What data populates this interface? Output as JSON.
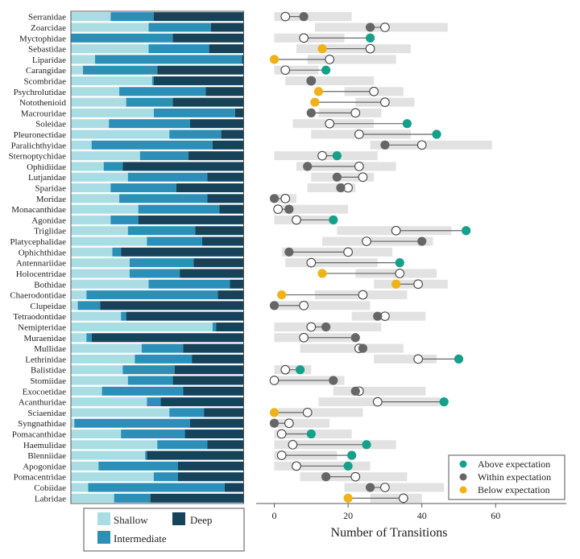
{
  "colors": {
    "shallow": "#aadde3",
    "intermediate": "#2c8fb8",
    "deep": "#16435a",
    "above": "#14a08a",
    "within": "#666666",
    "below": "#efb217",
    "range": "#e2e2e2",
    "connector": "#666666"
  },
  "chart_data": [
    {
      "type": "bar",
      "subtype": "stacked-proportion-horizontal",
      "title": "",
      "categories": [
        "Serranidae",
        "Zoarcidae",
        "Myctophidae",
        "Sebastidae",
        "Liparidae",
        "Carangidae",
        "Scombridae",
        "Psychrolutidae",
        "Notothenioid",
        "Macrouridae",
        "Soleidae",
        "Pleuronectidae",
        "Paralichthyidae",
        "Sternoptychidae",
        "Ophidiidae",
        "Lutjanidae",
        "Sparidae",
        "Moridae",
        "Monacanthidae",
        "Agonidae",
        "Triglidae",
        "Platycephalidae",
        "Ophichthidae",
        "Antennariidae",
        "Holocentridae",
        "Bothidae",
        "Chaerodontidae",
        "Clupeidae",
        "Tetraodontidae",
        "Nemipteridae",
        "Muraenidae",
        "Mullidae",
        "Lethrinidae",
        "Balistidae",
        "Stomiidae",
        "Exocoetidae",
        "Acanthuridae",
        "Sciaenidae",
        "Syngnathidae",
        "Pomacanthidae",
        "Haemulidae",
        "Blenniidae",
        "Apogonidae",
        "Pomacentridae",
        "Cobiidae",
        "Labridae"
      ],
      "series": [
        {
          "name": "Shallow",
          "values": [
            0.23,
            0.45,
            0.0,
            0.45,
            0.14,
            0.07,
            0.47,
            0.28,
            0.32,
            0.48,
            0.22,
            0.57,
            0.12,
            0.4,
            0.19,
            0.33,
            0.23,
            0.28,
            0.39,
            0.23,
            0.33,
            0.44,
            0.24,
            0.34,
            0.34,
            0.45,
            0.09,
            0.04,
            0.29,
            0.82,
            0.09,
            0.41,
            0.37,
            0.3,
            0.33,
            0.18,
            0.44,
            0.57,
            0.02,
            0.29,
            0.5,
            0.43,
            0.16,
            0.48,
            0.1,
            0.25
          ]
        },
        {
          "name": "Intermediate",
          "values": [
            0.25,
            0.36,
            0.59,
            0.35,
            0.85,
            0.43,
            0.01,
            0.5,
            0.27,
            0.47,
            0.47,
            0.3,
            0.7,
            0.28,
            0.11,
            0.46,
            0.38,
            0.51,
            0.47,
            0.16,
            0.39,
            0.32,
            0.05,
            0.37,
            0.29,
            0.47,
            0.76,
            0.13,
            0.03,
            0.02,
            0.03,
            0.24,
            0.33,
            0.3,
            0.26,
            0.47,
            0.08,
            0.2,
            0.67,
            0.37,
            0.29,
            0.01,
            0.46,
            0.14,
            0.79,
            0.21
          ]
        },
        {
          "name": "Deep",
          "values": [
            0.52,
            0.19,
            0.41,
            0.2,
            0.01,
            0.5,
            0.52,
            0.22,
            0.41,
            0.05,
            0.31,
            0.13,
            0.18,
            0.32,
            0.7,
            0.21,
            0.39,
            0.21,
            0.14,
            0.61,
            0.28,
            0.24,
            0.71,
            0.29,
            0.37,
            0.08,
            0.15,
            0.83,
            0.68,
            0.16,
            0.88,
            0.35,
            0.3,
            0.4,
            0.41,
            0.35,
            0.48,
            0.23,
            0.31,
            0.34,
            0.21,
            0.56,
            0.38,
            0.38,
            0.11,
            0.54
          ]
        }
      ],
      "xlim": [
        0,
        1
      ],
      "legend": {
        "entries": [
          "Shallow",
          "Deep",
          "Intermediate"
        ],
        "position": "bottom"
      }
    },
    {
      "type": "scatter",
      "subtype": "dumbbell",
      "title": "",
      "categories": [
        "Serranidae",
        "Zoarcidae",
        "Myctophidae",
        "Sebastidae",
        "Liparidae",
        "Carangidae",
        "Scombridae",
        "Psychrolutidae",
        "Notothenioid",
        "Macrouridae",
        "Soleidae",
        "Pleuronectidae",
        "Paralichthyidae",
        "Sternoptychidae",
        "Ophidiidae",
        "Lutjanidae",
        "Sparidae",
        "Moridae",
        "Monacanthidae",
        "Agonidae",
        "Triglidae",
        "Platycephalidae",
        "Ophichthidae",
        "Antennariidae",
        "Holocentridae",
        "Bothidae",
        "Chaerodontidae",
        "Clupeidae",
        "Tetraodontidae",
        "Nemipteridae",
        "Muraenidae",
        "Mullidae",
        "Lethrinidae",
        "Balistidae",
        "Stomiidae",
        "Exocoetidae",
        "Acanthuridae",
        "Sciaenidae",
        "Syngnathidae",
        "Pomacanthidae",
        "Haemulidae",
        "Blenniidae",
        "Apogonidae",
        "Pomacentridae",
        "Cobiidae",
        "Labridae"
      ],
      "expected": [
        3,
        30,
        8,
        26,
        15,
        3,
        10,
        27,
        30,
        22,
        15,
        23,
        40,
        13,
        23,
        24,
        20,
        3,
        1,
        6,
        33,
        25,
        20,
        10,
        34,
        39,
        24,
        8,
        30,
        10,
        8,
        23,
        39,
        3,
        0,
        23,
        28,
        9,
        4,
        2,
        5,
        2,
        6,
        22,
        30,
        35
      ],
      "observed": [
        8,
        26,
        26,
        13,
        0,
        14,
        10,
        12,
        11,
        10,
        36,
        44,
        30,
        17,
        9,
        17,
        18,
        0,
        4,
        16,
        52,
        40,
        4,
        34,
        13,
        33,
        2,
        0,
        28,
        14,
        22,
        24,
        50,
        7,
        16,
        22,
        46,
        0,
        0,
        10,
        25,
        21,
        20,
        14,
        26,
        20
      ],
      "status": [
        "within",
        "within",
        "above",
        "below",
        "below",
        "above",
        "within",
        "below",
        "below",
        "within",
        "above",
        "above",
        "within",
        "above",
        "within",
        "within",
        "within",
        "within",
        "within",
        "above",
        "above",
        "within",
        "within",
        "above",
        "below",
        "below",
        "below",
        "within",
        "within",
        "within",
        "within",
        "within",
        "above",
        "above",
        "within",
        "within",
        "above",
        "below",
        "within",
        "above",
        "above",
        "above",
        "above",
        "within",
        "within",
        "below"
      ],
      "range_low": [
        0,
        11,
        0,
        6,
        9,
        0,
        3,
        19,
        22,
        12,
        5,
        10,
        26,
        0,
        6,
        10,
        9,
        0,
        0,
        0,
        17,
        13,
        2,
        3,
        22,
        27,
        11,
        0,
        21,
        0,
        0,
        7,
        27,
        0,
        0,
        16,
        12,
        1,
        0,
        0,
        0,
        0,
        0,
        7,
        19,
        26
      ],
      "range_high": [
        21,
        47,
        19,
        37,
        33,
        12,
        27,
        35,
        38,
        29,
        27,
        37,
        59,
        28,
        33,
        27,
        22,
        6,
        20,
        17,
        48,
        43,
        32,
        28,
        44,
        47,
        36,
        26,
        41,
        29,
        21,
        35,
        44,
        10,
        19,
        41,
        45,
        24,
        15,
        21,
        33,
        17,
        26,
        36,
        46,
        40
      ],
      "xlabel": "Number of Transitions",
      "ylabel": "",
      "xlim": [
        -6,
        80
      ],
      "xticks": [
        0,
        20,
        40,
        60
      ],
      "legend": {
        "entries": [
          "Above expectation",
          "Within expectation",
          "Below expectation"
        ],
        "position": "bottom-right"
      }
    }
  ]
}
